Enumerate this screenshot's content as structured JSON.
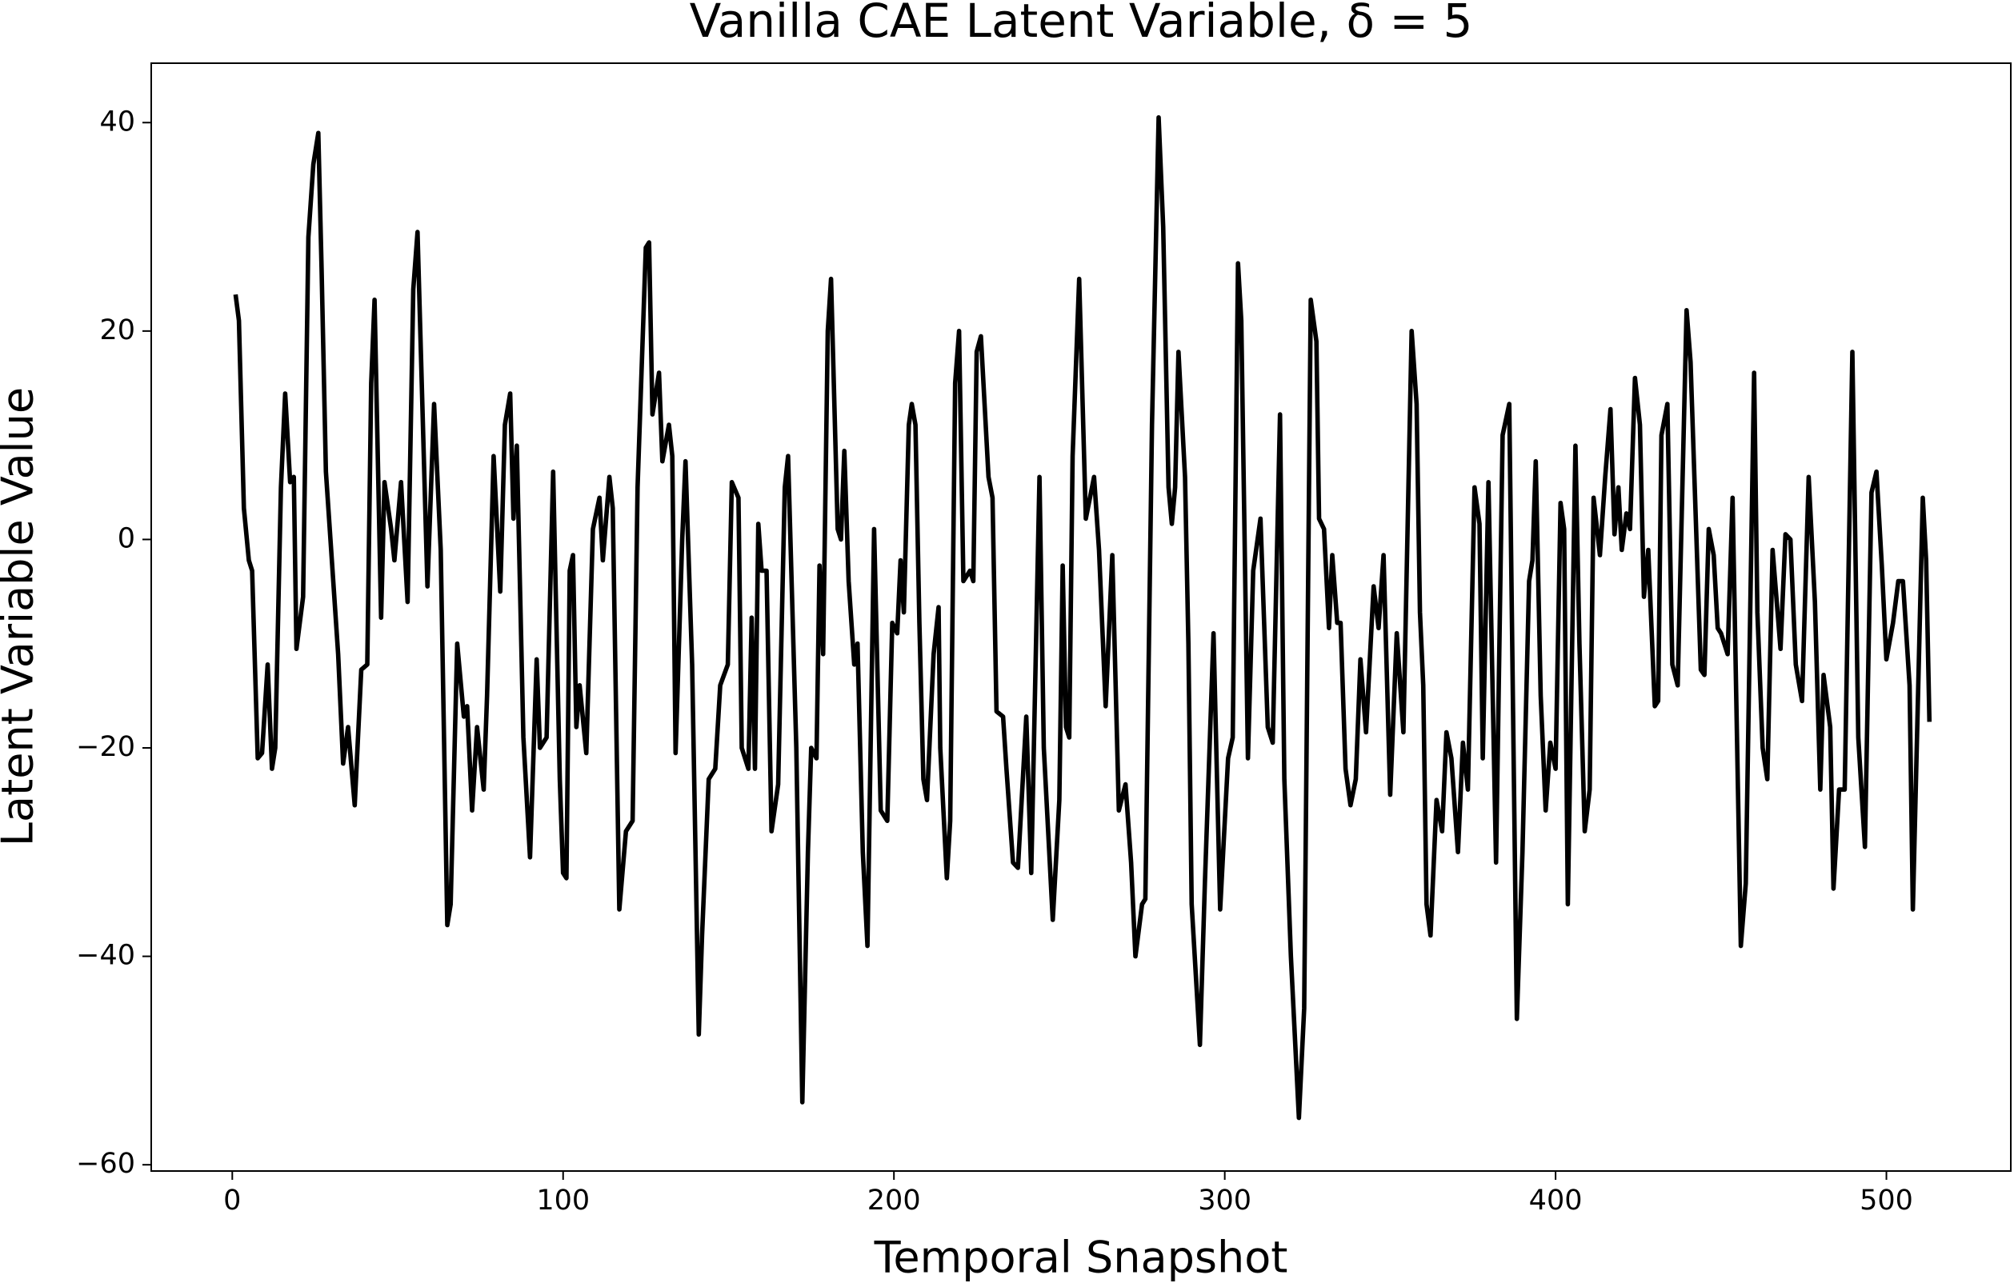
{
  "chart_data": {
    "type": "line",
    "title": "Vanilla CAE Latent Variable, δ = 5",
    "x_label": "Temporal Snapshot",
    "y_label": "Latent Variable Value",
    "color": "#000000",
    "x": [
      1,
      2,
      3.5,
      5,
      6,
      7.7,
      9,
      10.7,
      12,
      13,
      14.7,
      16,
      17.5,
      18.6,
      19.4,
      21.4,
      23,
      24.5,
      26,
      27,
      28.3,
      32,
      33.5,
      35,
      37,
      39,
      40.8,
      42,
      43,
      45,
      46,
      48,
      49,
      51,
      53,
      54.7,
      56,
      59,
      61,
      63,
      65,
      66,
      68,
      70,
      71,
      72.5,
      74,
      76,
      77,
      79,
      81,
      82.4,
      84,
      85,
      86,
      88,
      90,
      92,
      93,
      95,
      97,
      99,
      100,
      101,
      102,
      103,
      104,
      105,
      107,
      109,
      111,
      112,
      114,
      115,
      117,
      119,
      121,
      122.5,
      125,
      126,
      127,
      129,
      130,
      132,
      133,
      134,
      136,
      137,
      139,
      141,
      142,
      144,
      146,
      147.5,
      149.8,
      151,
      153,
      154,
      156,
      157,
      158,
      159,
      160,
      161.5,
      163,
      165,
      167,
      168,
      170.5,
      172.3,
      174,
      175,
      176.6,
      177.5,
      178.6,
      180,
      181,
      183,
      184,
      185,
      186.3,
      188,
      189,
      190.6,
      192,
      194,
      196,
      198,
      199.5,
      201,
      202,
      203,
      204.5,
      205.4,
      206.5,
      207.7,
      208.9,
      210,
      212,
      213.5,
      214,
      216,
      217,
      218.5,
      219.7,
      221,
      223,
      224,
      225,
      226.3,
      228.6,
      229.8,
      231,
      233,
      234,
      236,
      237.5,
      240,
      241.5,
      244,
      245.3,
      248,
      250,
      251,
      252,
      253,
      254,
      256,
      258,
      260.5,
      262,
      264,
      266,
      268,
      270,
      271.7,
      273,
      275,
      276,
      278,
      280,
      281.4,
      283,
      284,
      285,
      286,
      288,
      289,
      290,
      292.5,
      294,
      296.6,
      298.6,
      301,
      302.4,
      304,
      305,
      307,
      308.6,
      310.8,
      313,
      314.5,
      316.7,
      318,
      320,
      321,
      322.4,
      324,
      326,
      327.7,
      328.5,
      330,
      331.5,
      332.5,
      334,
      335,
      336.5,
      338,
      339.6,
      341,
      342.7,
      345,
      346.5,
      348,
      350,
      352,
      354,
      356.5,
      358,
      359,
      360,
      361,
      362.2,
      364,
      365.7,
      367,
      368.5,
      370.5,
      372,
      373.5,
      375.5,
      377,
      378,
      379.7,
      382,
      384,
      386,
      388.3,
      390,
      392,
      393,
      394,
      395.5,
      397,
      398.4,
      400,
      401.5,
      402.6,
      403.7,
      406,
      407.2,
      408.8,
      410.3,
      411.5,
      413.4,
      415,
      416.6,
      417.8,
      419,
      420,
      421.4,
      422.5,
      424,
      425.5,
      426.7,
      428,
      430,
      431,
      432,
      433.8,
      435.3,
      436.9,
      439.6,
      440.8,
      443.9,
      445,
      446.3,
      447.8,
      449,
      450,
      452,
      453.5,
      456,
      457.5,
      460,
      461,
      462.6,
      464,
      465.6,
      468,
      469.5,
      471,
      472.6,
      474.5,
      476.5,
      478.4,
      480,
      481,
      483,
      484,
      485.7,
      487.4,
      489.7,
      491.5,
      493.5,
      495.5,
      497,
      498.6,
      500,
      502,
      503.6,
      505,
      507,
      508,
      511,
      512,
      513
    ],
    "values": [
      23.5,
      21,
      3,
      -2,
      -3,
      -21,
      -20.5,
      -12,
      -22,
      -20,
      5,
      14,
      5.5,
      6,
      -10.5,
      -5.5,
      29,
      36,
      39,
      26,
      6.5,
      -11,
      -21.5,
      -18,
      -25.5,
      -12.5,
      -12,
      15,
      23,
      -7.5,
      5.5,
      1,
      -2,
      5.5,
      -6,
      24,
      29.5,
      -4.5,
      13,
      -1,
      -37,
      -35,
      -10,
      -17,
      -16,
      -26,
      -18,
      -24,
      -15,
      8,
      -5,
      11,
      14,
      2,
      9,
      -19,
      -30.5,
      -11.5,
      -20,
      -19,
      6.5,
      -23,
      -32,
      -32.5,
      -3,
      -1.5,
      -18,
      -14,
      -20.5,
      1,
      4,
      -2,
      6,
      3,
      -35.5,
      -28,
      -27,
      5,
      28,
      28.5,
      12,
      16,
      7.5,
      11,
      8,
      -20.5,
      0,
      7.5,
      -12,
      -47.5,
      -38,
      -23,
      -22,
      -14,
      -12,
      5.5,
      4,
      -20,
      -22,
      -7.5,
      -22,
      1.5,
      -3,
      -3,
      -28,
      -23.5,
      5,
      8,
      -20,
      -54,
      -30,
      -20,
      -21,
      -2.5,
      -11,
      20,
      25,
      1,
      0,
      8.5,
      -4,
      -12,
      -10,
      -30,
      -39,
      1,
      -26,
      -27,
      -8,
      -9,
      -2,
      -7,
      11,
      13,
      11,
      -8,
      -23,
      -25,
      -11,
      -6.5,
      -20,
      -32.5,
      -27,
      15,
      20,
      -4,
      -3,
      -4,
      18,
      19.5,
      6,
      4,
      -16.5,
      -17,
      -22,
      -31,
      -31.5,
      -17,
      -32,
      6,
      -20,
      -36.5,
      -25,
      -2.5,
      -18,
      -19,
      8,
      25,
      2,
      6,
      -1,
      -16,
      -1.5,
      -26,
      -23.5,
      -31,
      -40,
      -35,
      -34.5,
      11,
      40.5,
      30,
      5,
      1.5,
      5,
      18,
      6,
      -10,
      -35,
      -48.5,
      -33,
      -9,
      -35.5,
      -21,
      -19,
      26.5,
      21,
      -21,
      -3,
      2,
      -18,
      -19.5,
      12,
      -23,
      -40,
      -46.5,
      -55.5,
      -45,
      23,
      19,
      2,
      1,
      -8.5,
      -1.5,
      -8,
      -8,
      -22,
      -25.5,
      -23,
      -11.5,
      -18.5,
      -4.5,
      -8.5,
      -1.5,
      -24.5,
      -9,
      -18.5,
      20,
      13,
      -7,
      -14,
      -35,
      -38,
      -25,
      -28,
      -18.5,
      -21,
      -30,
      -19.5,
      -24,
      5,
      1.5,
      -21,
      5.5,
      -31,
      10,
      13,
      -46,
      -30,
      -4,
      -2,
      7.5,
      -15,
      -26,
      -19.5,
      -22,
      3.5,
      1,
      -35,
      9,
      -10,
      -28,
      -24,
      4,
      -1.5,
      6,
      12.5,
      0.5,
      5,
      -1,
      2.5,
      1,
      15.5,
      11,
      -5.5,
      -1,
      -16,
      -15.5,
      10,
      13,
      -12,
      -14,
      22,
      17,
      -12.5,
      -13,
      1,
      -1.5,
      -8.5,
      -9,
      -11,
      4,
      -39,
      -33,
      16,
      -7,
      -20,
      -23,
      -1,
      -10.5,
      0.5,
      0,
      -12,
      -15.5,
      6,
      -6,
      -24,
      -13,
      -18,
      -33.5,
      -24,
      -24,
      18,
      -19,
      -29.5,
      4.5,
      6.5,
      -2.5,
      -11.5,
      -8,
      -4,
      -4,
      -14,
      -35.5,
      4,
      -2,
      -17.5
    ],
    "xlim": [
      -24.5,
      537.6
    ],
    "ylim": [
      -60.6,
      45.7
    ],
    "xticks": [
      0,
      100,
      200,
      300,
      400,
      500
    ],
    "yticks": [
      {
        "value": -60,
        "label": "−60"
      },
      {
        "value": -40,
        "label": "−40"
      },
      {
        "value": -20,
        "label": "−20"
      },
      0,
      20,
      40
    ]
  }
}
